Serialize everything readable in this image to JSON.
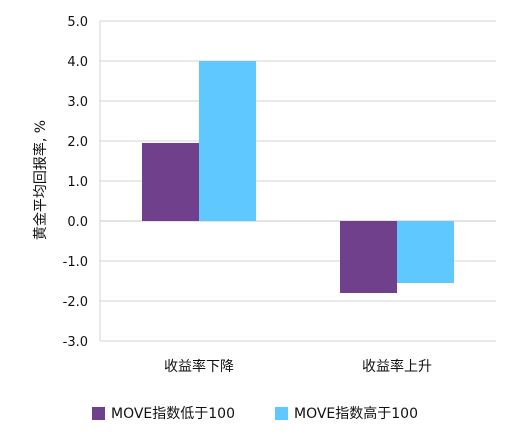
{
  "chart_data": {
    "type": "bar",
    "categories": [
      "收益率下降",
      "收益率上升"
    ],
    "series": [
      {
        "name": "MOVE指数低于100",
        "values": [
          1.95,
          -1.8
        ],
        "color": "#71408c"
      },
      {
        "name": "MOVE指数高于100",
        "values": [
          4.0,
          -1.55
        ],
        "color": "#5ec8ff"
      }
    ],
    "ylabel": "黄金平均回报率, %",
    "ylim": [
      -3.0,
      5.0
    ],
    "yticks": [
      "5.0",
      "4.0",
      "3.0",
      "2.0",
      "1.0",
      "0.0",
      "-1.0",
      "-2.0",
      "-3.0"
    ],
    "grid": true,
    "legend_position": "bottom"
  }
}
